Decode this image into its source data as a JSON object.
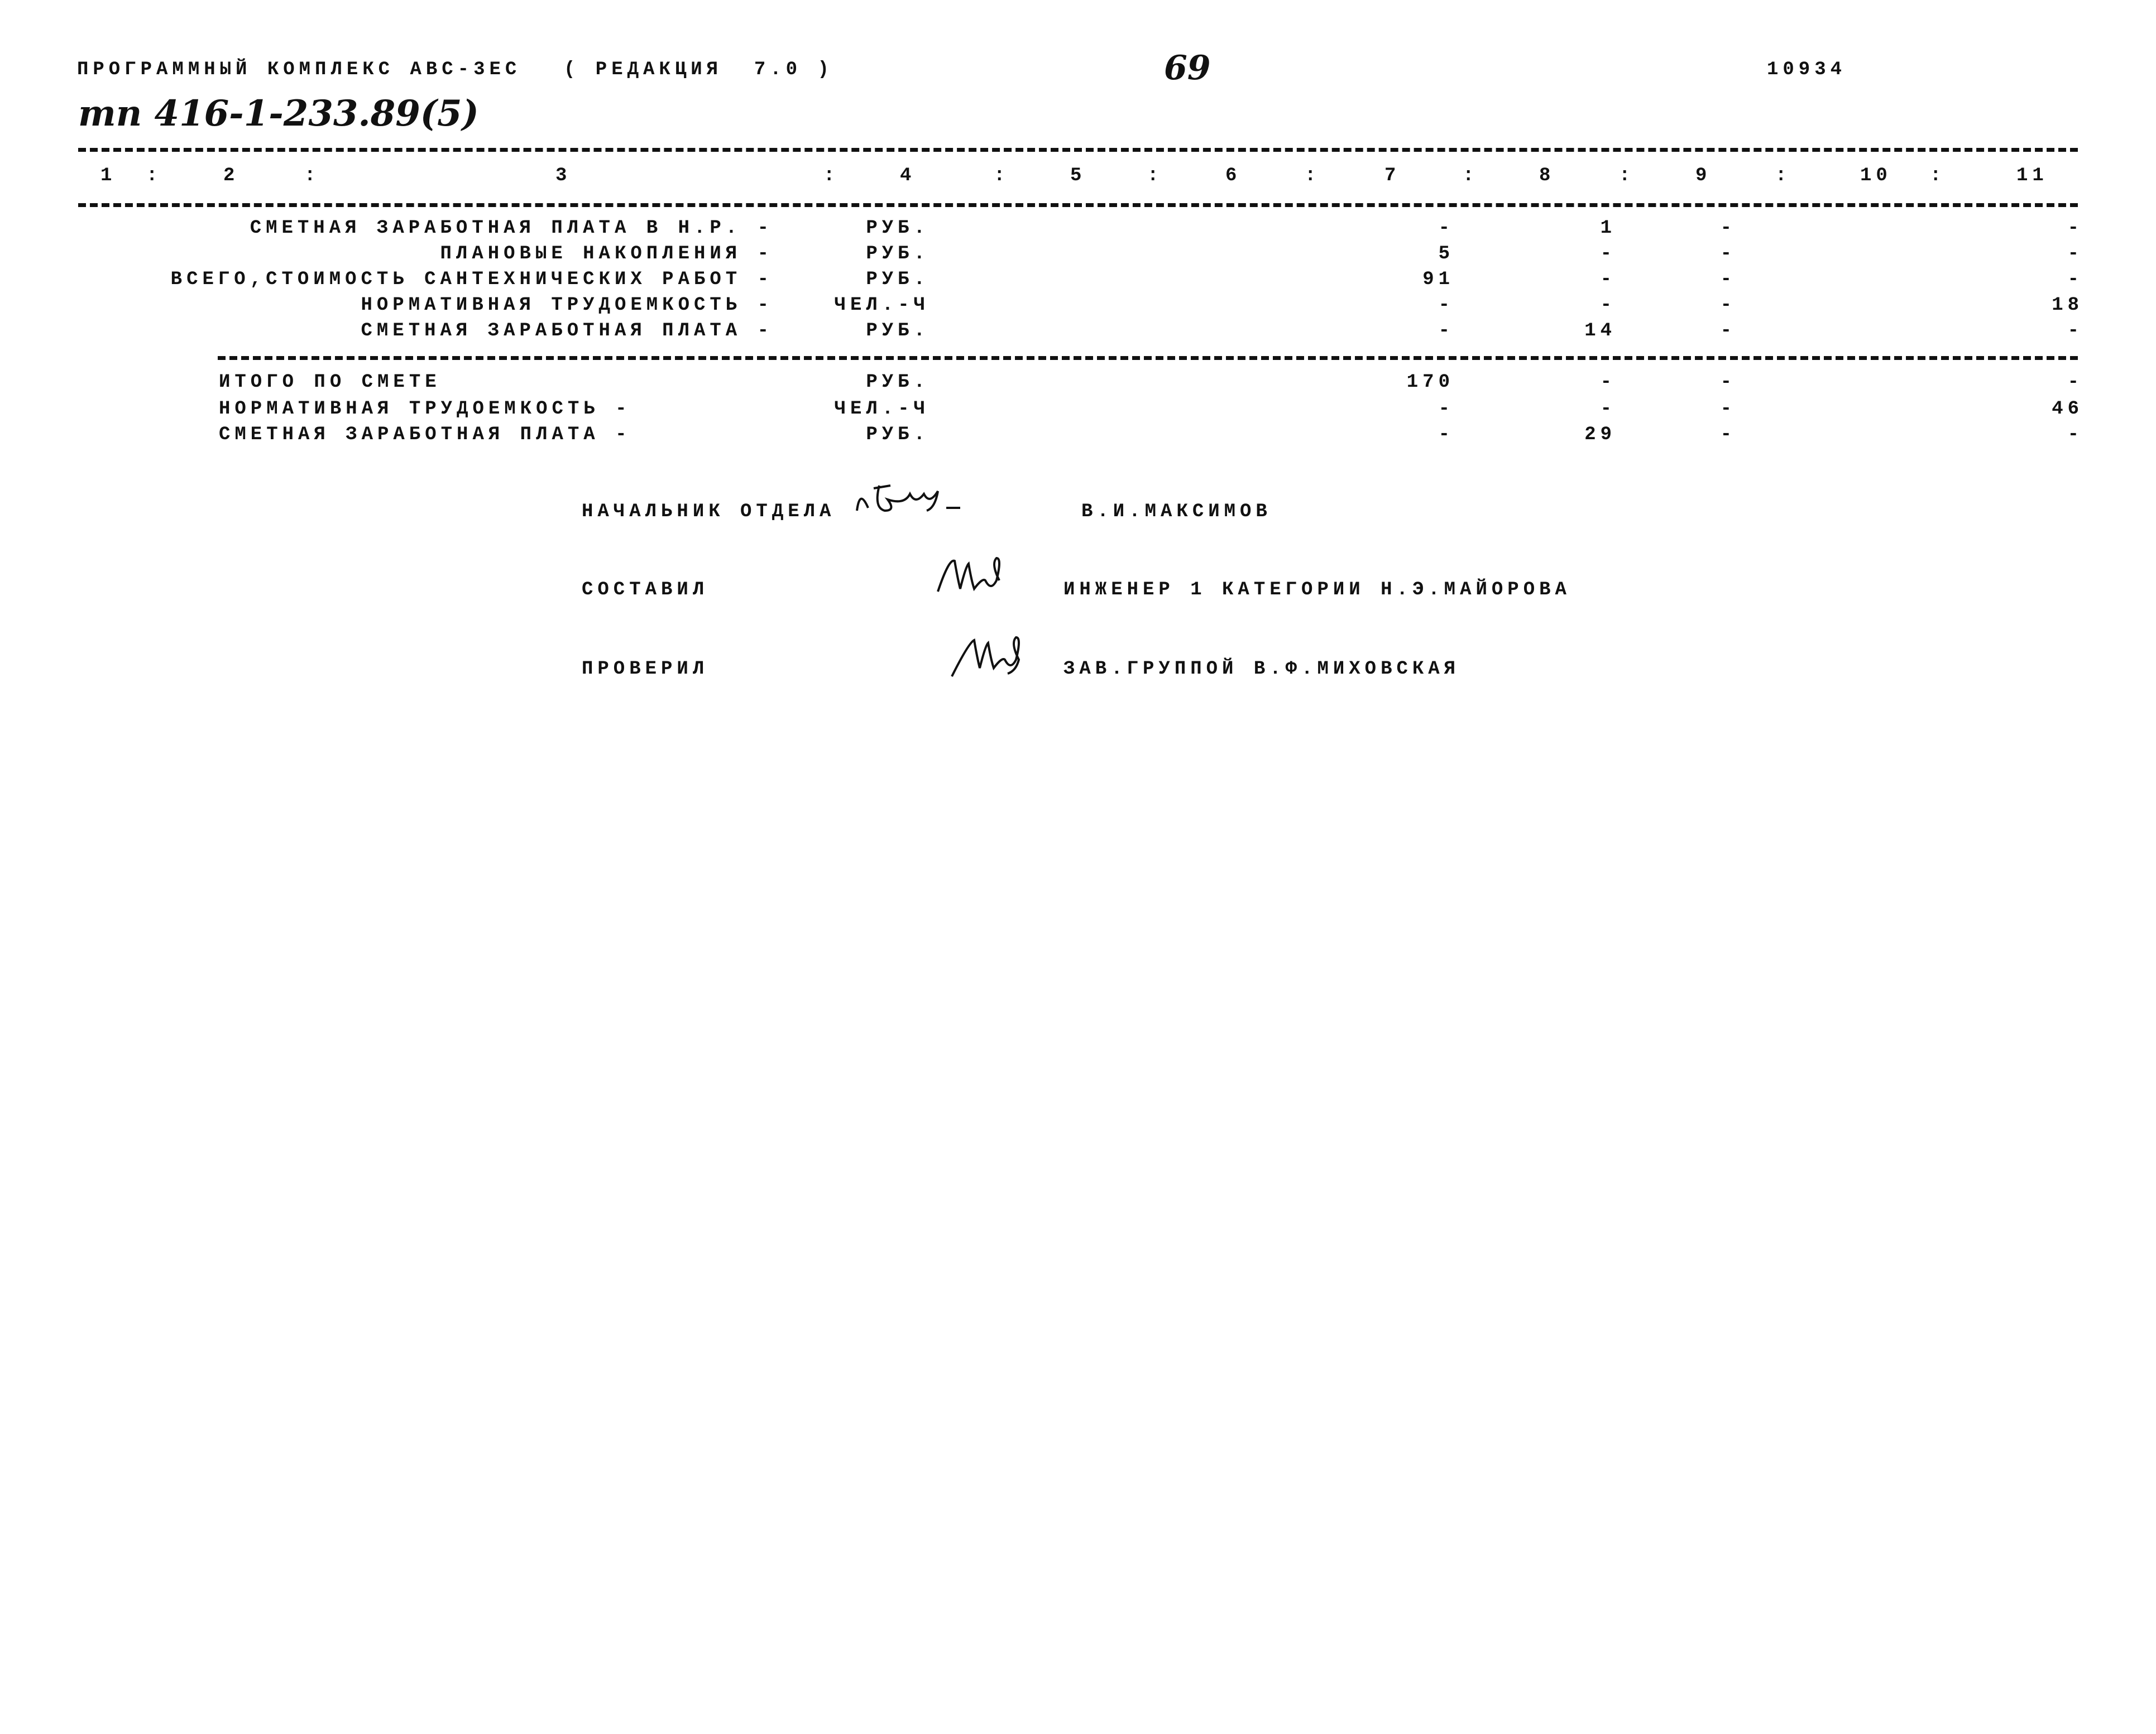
{
  "header": {
    "program": "ПРОГРАММНЫЙ КОМПЛЕКС АВС-3ЕС",
    "edition": "( РЕДАКЦИЯ  7.0 )",
    "page_number": "69",
    "doc_number": "10934",
    "project_code": "тп 416-1-233.89(5)"
  },
  "table": {
    "column_numbers": [
      "1",
      ":",
      "2",
      ":",
      "3",
      ":",
      "4",
      ":",
      "5",
      ":",
      "6",
      ":",
      "7",
      ":",
      "8",
      ":",
      "9",
      ":",
      "10",
      ":",
      "11"
    ],
    "section1": [
      {
        "label": "СМЕТНАЯ ЗАРАБОТНАЯ ПЛАТА В Н.Р. -",
        "unit": "РУБ.",
        "c7": "-",
        "c8": "1",
        "c9": "-",
        "c11": "-"
      },
      {
        "label": "ПЛАНОВЫЕ НАКОПЛЕНИЯ -",
        "unit": "РУБ.",
        "c7": "5",
        "c8": "-",
        "c9": "-",
        "c11": "-"
      },
      {
        "label": "ВСЕГО,СТОИМОСТЬ САНТЕХНИЧЕСКИХ РАБОТ -",
        "unit": "РУБ.",
        "c7": "91",
        "c8": "-",
        "c9": "-",
        "c11": "-"
      },
      {
        "label": "НОРМАТИВНАЯ ТРУДОЕМКОСТЬ -",
        "unit": "ЧЕЛ.-Ч",
        "c7": "-",
        "c8": "-",
        "c9": "-",
        "c11": "18"
      },
      {
        "label": "СМЕТНАЯ ЗАРАБОТНАЯ ПЛАТА -",
        "unit": "РУБ.",
        "c7": "-",
        "c8": "14",
        "c9": "-",
        "c11": "-"
      }
    ],
    "section2": [
      {
        "label": "ИТОГО ПО СМЕТЕ",
        "unit": "РУБ.",
        "c7": "170",
        "c8": "-",
        "c9": "-",
        "c11": "-"
      },
      {
        "label": "НОРМАТИВНАЯ ТРУДОЕМКОСТЬ -",
        "unit": "ЧЕЛ.-Ч",
        "c7": "-",
        "c8": "-",
        "c9": "-",
        "c11": "46"
      },
      {
        "label": "СМЕТНАЯ ЗАРАБОТНАЯ ПЛАТА -",
        "unit": "РУБ.",
        "c7": "-",
        "c8": "29",
        "c9": "-",
        "c11": "-"
      }
    ]
  },
  "signatures": [
    {
      "role": "НАЧАЛЬНИК ОТДЕЛА",
      "name": "В.И.МАКСИМОВ"
    },
    {
      "role": "СОСТАВИЛ",
      "name": "ИНЖЕНЕР 1 КАТЕГОРИИ Н.Э.МАЙОРОВА"
    },
    {
      "role": "ПРОВЕРИЛ",
      "name": "ЗАВ.ГРУППОЙ В.Ф.МИХОВСКАЯ"
    }
  ]
}
